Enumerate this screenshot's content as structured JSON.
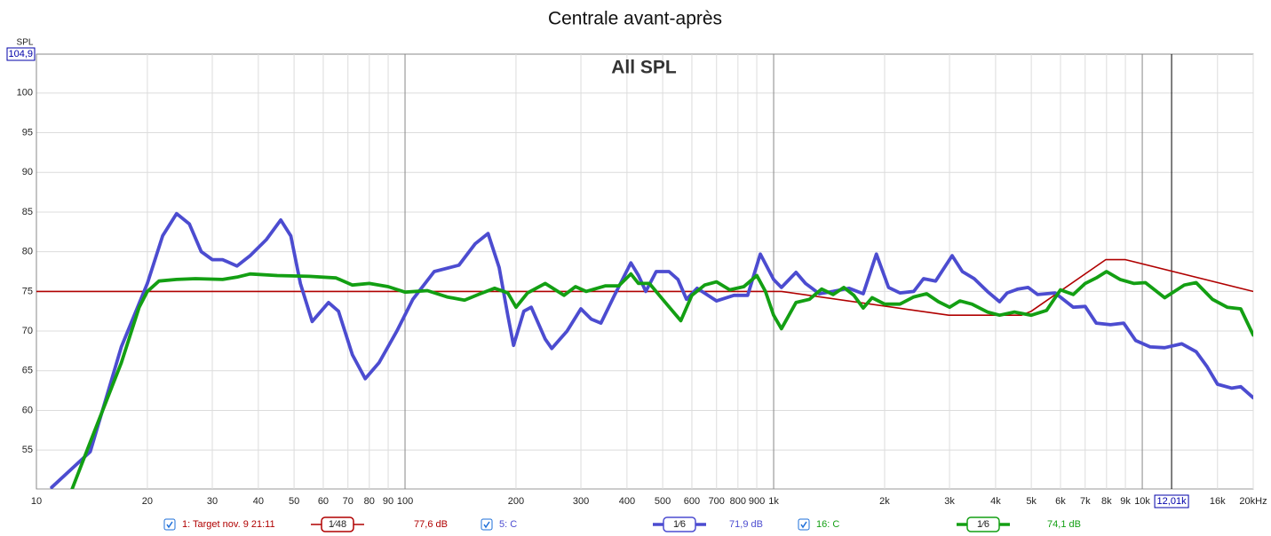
{
  "chart_data": {
    "type": "line",
    "title": "Centrale avant-après",
    "annotation": "All SPL",
    "ylabel": "SPL",
    "log_x": true,
    "grid": true,
    "xlim": [
      10,
      20000
    ],
    "ylim": [
      50.1,
      104.9
    ],
    "yticks": [
      55,
      60,
      65,
      70,
      75,
      80,
      85,
      90,
      95,
      100,
      {
        "value": 104.9,
        "label": "104,9"
      }
    ],
    "xticks": [
      10,
      20,
      30,
      40,
      50,
      60,
      70,
      80,
      90,
      100,
      200,
      300,
      400,
      500,
      600,
      700,
      800,
      900,
      {
        "value": 1000,
        "label": "1k"
      },
      {
        "value": 2000,
        "label": "2k"
      },
      {
        "value": 3000,
        "label": "3k"
      },
      {
        "value": 4000,
        "label": "4k"
      },
      {
        "value": 5000,
        "label": "5k"
      },
      {
        "value": 6000,
        "label": "6k"
      },
      {
        "value": 7000,
        "label": "7k"
      },
      {
        "value": 8000,
        "label": "8k"
      },
      {
        "value": 9000,
        "label": "9k"
      },
      {
        "value": 10000,
        "label": "10k"
      },
      {
        "value": 16000,
        "label": "16k"
      },
      {
        "value": 20000,
        "label": "20kHz"
      }
    ],
    "cursor": {
      "value": 12010,
      "label": "12,01k"
    },
    "series": [
      {
        "name": "1: Target nov. 9 21:11",
        "smoothing": "1⁄48",
        "readout": "77,6 dB",
        "color": "#b00000",
        "x": [
          10,
          1050,
          2985,
          4700,
          5000,
          7960,
          9000,
          20000
        ],
        "values": [
          75,
          75,
          72,
          72,
          72.5,
          79,
          79,
          75
        ]
      },
      {
        "name": "5: C",
        "smoothing": "1⁄6",
        "readout": "71,9 dB",
        "color": "#4c4cd0",
        "x": [
          11,
          14,
          17,
          20,
          22,
          24,
          26,
          28,
          30,
          32,
          35,
          38,
          42,
          46,
          49,
          52,
          56,
          62,
          66,
          72,
          78,
          85,
          95,
          105,
          120,
          140,
          155,
          168,
          180,
          190,
          197,
          210,
          220,
          240,
          250,
          275,
          300,
          320,
          340,
          370,
          410,
          430,
          450,
          480,
          520,
          550,
          580,
          620,
          700,
          780,
          850,
          920,
          1000,
          1050,
          1150,
          1220,
          1330,
          1450,
          1600,
          1750,
          1900,
          2050,
          2200,
          2400,
          2550,
          2750,
          3050,
          3250,
          3500,
          3800,
          4100,
          4300,
          4600,
          4900,
          5200,
          5800,
          6500,
          7000,
          7500,
          8200,
          8900,
          9600,
          10500,
          11500,
          12800,
          14000,
          15000,
          16000,
          17500,
          18500,
          20000
        ],
        "values": [
          50.3,
          54.8,
          68,
          76,
          82,
          84.8,
          83.5,
          80,
          79,
          79,
          78.2,
          79.5,
          81.5,
          84,
          82,
          76,
          71.2,
          73.6,
          72.5,
          67,
          64,
          66,
          70,
          74,
          77.5,
          78.3,
          81,
          82.3,
          78,
          72,
          68.2,
          72.5,
          73,
          69,
          67.8,
          70,
          72.8,
          71.5,
          71,
          74.5,
          78.6,
          77,
          75,
          77.5,
          77.5,
          76.5,
          74,
          75.4,
          73.8,
          74.5,
          74.5,
          79.7,
          76.5,
          75.5,
          77.4,
          76,
          74.7,
          75,
          75.4,
          74.7,
          79.7,
          75.5,
          74.8,
          75,
          76.6,
          76.3,
          79.5,
          77.5,
          76.6,
          75,
          73.7,
          74.8,
          75.3,
          75.5,
          74.6,
          74.8,
          73,
          73.1,
          71,
          70.8,
          71,
          68.8,
          68,
          67.9,
          68.4,
          67.4,
          65.5,
          63.3,
          62.8,
          63,
          61.6
        ]
      },
      {
        "name": "16: C",
        "smoothing": "1⁄6",
        "readout": "74,1 dB",
        "color": "#139f13",
        "x": [
          12.5,
          14,
          17,
          19,
          20,
          21.5,
          24,
          27,
          32,
          35,
          38,
          45,
          55,
          65,
          72,
          80,
          90,
          100,
          115,
          130,
          145,
          160,
          175,
          190,
          200,
          215,
          240,
          270,
          290,
          310,
          350,
          380,
          410,
          430,
          460,
          500,
          560,
          600,
          650,
          700,
          760,
          830,
          900,
          950,
          1000,
          1050,
          1150,
          1250,
          1350,
          1450,
          1550,
          1650,
          1750,
          1850,
          2000,
          2200,
          2400,
          2600,
          2800,
          3000,
          3200,
          3450,
          3800,
          4100,
          4500,
          5000,
          5500,
          6000,
          6500,
          7000,
          7500,
          8000,
          8700,
          9500,
          10200,
          11500,
          13000,
          14000,
          15500,
          17000,
          18500,
          20000
        ],
        "values": [
          50.1,
          56,
          66,
          73,
          75,
          76.3,
          76.5,
          76.6,
          76.5,
          76.8,
          77.2,
          77,
          76.9,
          76.7,
          75.8,
          76,
          75.6,
          74.9,
          75.1,
          74.3,
          73.9,
          74.7,
          75.4,
          74.8,
          73,
          74.8,
          76,
          74.5,
          75.6,
          75,
          75.7,
          75.7,
          77.2,
          76,
          76,
          74,
          71.3,
          74.5,
          75.8,
          76.2,
          75.2,
          75.6,
          77,
          75,
          72,
          70.3,
          73.6,
          74,
          75.3,
          74.6,
          75.5,
          74.5,
          72.9,
          74.2,
          73.4,
          73.4,
          74.3,
          74.7,
          73.7,
          73,
          73.8,
          73.4,
          72.4,
          72,
          72.4,
          72,
          72.6,
          75.2,
          74.6,
          76,
          76.7,
          77.5,
          76.5,
          76,
          76.1,
          74.2,
          75.8,
          76.1,
          74,
          73,
          72.8,
          69.5
        ]
      }
    ]
  }
}
